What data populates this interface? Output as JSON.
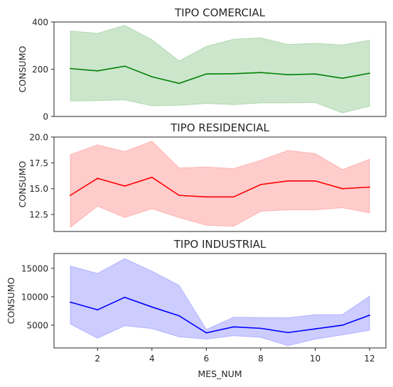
{
  "chart_data": [
    {
      "type": "line",
      "title": "TIPO COMERCIAL",
      "xlabel": "",
      "ylabel": "CONSUMO",
      "x": [
        1,
        2,
        3,
        4,
        5,
        6,
        7,
        8,
        9,
        10,
        11,
        12
      ],
      "xlim": [
        0.4,
        12.6
      ],
      "ylim": [
        0,
        400
      ],
      "yticks": [
        0,
        200,
        400
      ],
      "ytick_labels": [
        "0",
        "200",
        "400"
      ],
      "show_xticks": false,
      "color": "#008000",
      "band_color": "#008000",
      "series": [
        {
          "values": [
            203,
            193,
            213,
            168,
            140,
            180,
            181,
            186,
            177,
            180,
            162,
            183
          ],
          "lower": [
            65,
            67,
            70,
            45,
            47,
            55,
            50,
            57,
            57,
            59,
            15,
            43
          ],
          "upper": [
            362,
            352,
            386,
            325,
            235,
            297,
            327,
            333,
            305,
            310,
            303,
            323
          ]
        }
      ]
    },
    {
      "type": "line",
      "title": "TIPO RESIDENCIAL",
      "xlabel": "",
      "ylabel": "CONSUMO",
      "x": [
        1,
        2,
        3,
        4,
        5,
        6,
        7,
        8,
        9,
        10,
        11,
        12
      ],
      "xlim": [
        0.4,
        12.6
      ],
      "ylim": [
        10.85,
        20.0
      ],
      "yticks": [
        12.5,
        15.0,
        17.5,
        20.0
      ],
      "ytick_labels": [
        "12.5",
        "15.0",
        "17.5",
        "20.0"
      ],
      "show_xticks": false,
      "color": "#ff0000",
      "band_color": "#ff0000",
      "series": [
        {
          "values": [
            14.35,
            16.0,
            15.25,
            16.1,
            14.35,
            14.2,
            14.2,
            15.4,
            15.75,
            15.75,
            15.0,
            15.15
          ],
          "lower": [
            11.25,
            13.3,
            12.2,
            13.05,
            12.2,
            11.45,
            11.35,
            12.8,
            12.95,
            12.95,
            13.15,
            12.65
          ],
          "upper": [
            18.3,
            19.25,
            18.6,
            19.6,
            17.0,
            17.1,
            16.95,
            17.75,
            18.7,
            18.4,
            16.85,
            17.85
          ]
        }
      ]
    },
    {
      "type": "line",
      "title": "TIPO INDUSTRIAL",
      "xlabel": "MES_NUM",
      "ylabel": "CONSUMO",
      "x": [
        1,
        2,
        3,
        4,
        5,
        6,
        7,
        8,
        9,
        10,
        11,
        12
      ],
      "xlim": [
        0.4,
        12.6
      ],
      "ylim": [
        1000,
        17600
      ],
      "yticks": [
        5000,
        10000,
        15000
      ],
      "ytick_labels": [
        "5000",
        "10000",
        "15000"
      ],
      "show_xticks": true,
      "xticks": [
        2,
        4,
        6,
        8,
        10,
        12
      ],
      "xtick_labels": [
        "2",
        "4",
        "6",
        "8",
        "10",
        "12"
      ],
      "color": "#0000ff",
      "band_color": "#0000ff",
      "series": [
        {
          "values": [
            9050,
            7700,
            9900,
            8200,
            6650,
            3650,
            4700,
            4450,
            3700,
            4350,
            5000,
            6750
          ],
          "lower": [
            5200,
            2700,
            4900,
            4400,
            2950,
            2550,
            3150,
            2850,
            1400,
            2550,
            3300,
            4100
          ],
          "upper": [
            15400,
            14100,
            16700,
            14500,
            12000,
            4250,
            6400,
            6350,
            6300,
            6850,
            6850,
            10100
          ]
        }
      ]
    }
  ]
}
